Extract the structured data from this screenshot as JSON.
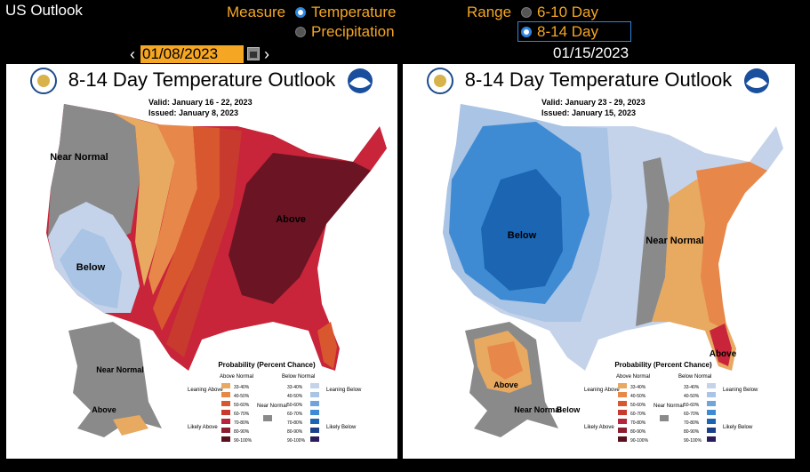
{
  "header": {
    "title": "US Outlook",
    "measure_label": "Measure",
    "measure_options": [
      "Temperature",
      "Precipitation"
    ],
    "range_label": "Range",
    "range_options": [
      "6-10 Day",
      "8-14 Day"
    ]
  },
  "date_nav": {
    "prev": "‹",
    "next": "›",
    "date_value": "01/08/2023",
    "second_date": "01/15/2023"
  },
  "left_map": {
    "title": "8-14 Day Temperature Outlook",
    "valid": "Valid:   January 16 - 22, 2023",
    "issued": "Issued:  January 8, 2023",
    "labels": [
      "Near Normal",
      "Below",
      "Above",
      "Near Normal",
      "Above"
    ]
  },
  "right_map": {
    "title": "8-14 Day Temperature Outlook",
    "valid": "Valid:   January 23 - 29, 2023",
    "issued": "Issued:  January 15, 2023",
    "labels": [
      "Below",
      "Near Normal",
      "Above",
      "Above",
      "Near Normal",
      "Below"
    ]
  },
  "legend": {
    "title": "Probability (Percent Chance)",
    "above_header": "Above Normal",
    "below_header": "Below Normal",
    "leaning_above": "Leaning Above",
    "likely_above": "Likely Above",
    "near_normal": "Near Normal",
    "leaning_below": "Leaning Below",
    "likely_below": "Likely Below",
    "above_ranges": [
      "33-40%",
      "40-50%",
      "50-60%",
      "60-70%",
      "70-80%",
      "80-90%",
      "90-100%"
    ],
    "below_ranges": [
      "33-40%",
      "40-50%",
      "50-60%",
      "60-70%",
      "70-80%",
      "80-90%",
      "90-100%"
    ],
    "above_colors": [
      "#e8a961",
      "#e8874a",
      "#d9572e",
      "#c83a2e",
      "#b8243a",
      "#8c1c2e",
      "#5a0f1c"
    ],
    "below_colors": [
      "#c4d3ea",
      "#a9c4e4",
      "#6fa5da",
      "#3f8bd3",
      "#1b65b2",
      "#1c3f8a",
      "#2a1c5c"
    ],
    "near_color": "#8a8a8a"
  },
  "colors": {
    "accent_orange": "#f5a623",
    "radio_blue": "#2f86e0"
  }
}
